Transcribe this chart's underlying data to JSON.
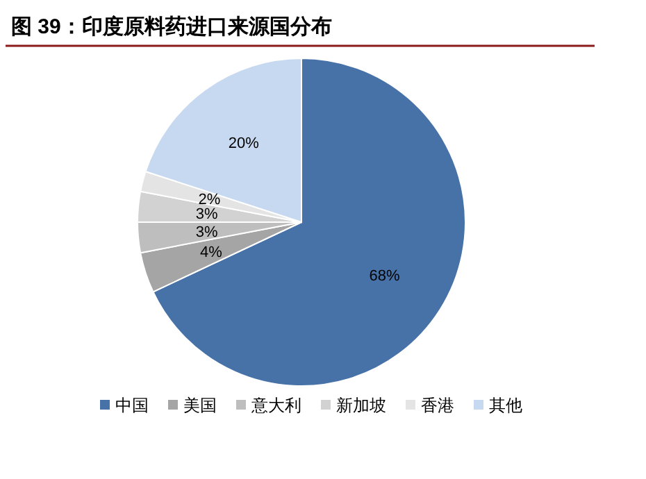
{
  "chart_data": {
    "type": "pie",
    "title": "图 39：印度原料药进口来源国分布",
    "categories": [
      "中国",
      "美国",
      "意大利",
      "新加坡",
      "香港",
      "其他"
    ],
    "values": [
      68,
      4,
      3,
      3,
      2,
      20
    ],
    "colors": [
      "#4672a8",
      "#a5a5a5",
      "#bebebe",
      "#d2d2d2",
      "#e4e4e4",
      "#c6d9f0"
    ],
    "value_labels": [
      "68%",
      "4%",
      "3%",
      "3%",
      "2%",
      "20%"
    ],
    "legend": "bottom"
  }
}
